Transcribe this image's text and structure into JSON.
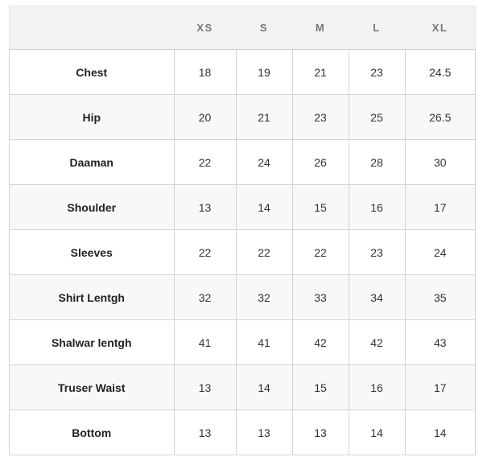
{
  "headers": [
    "",
    "XS",
    "S",
    "M",
    "L",
    "XL"
  ],
  "rows": [
    {
      "label": "Chest",
      "values": [
        "18",
        "19",
        "21",
        "23",
        "24.5"
      ]
    },
    {
      "label": "Hip",
      "values": [
        "20",
        "21",
        "23",
        "25",
        "26.5"
      ]
    },
    {
      "label": "Daaman",
      "values": [
        "22",
        "24",
        "26",
        "28",
        "30"
      ]
    },
    {
      "label": "Shoulder",
      "values": [
        "13",
        "14",
        "15",
        "16",
        "17"
      ]
    },
    {
      "label": "Sleeves",
      "values": [
        "22",
        "22",
        "22",
        "23",
        "24"
      ]
    },
    {
      "label": "Shirt Lentgh",
      "values": [
        "32",
        "32",
        "33",
        "34",
        "35"
      ]
    },
    {
      "label": "Shalwar lentgh",
      "values": [
        "41",
        "41",
        "42",
        "42",
        "43"
      ]
    },
    {
      "label": "Truser Waist",
      "values": [
        "13",
        "14",
        "15",
        "16",
        "17"
      ]
    },
    {
      "label": "Bottom",
      "values": [
        "13",
        "13",
        "13",
        "14",
        "14"
      ]
    }
  ]
}
